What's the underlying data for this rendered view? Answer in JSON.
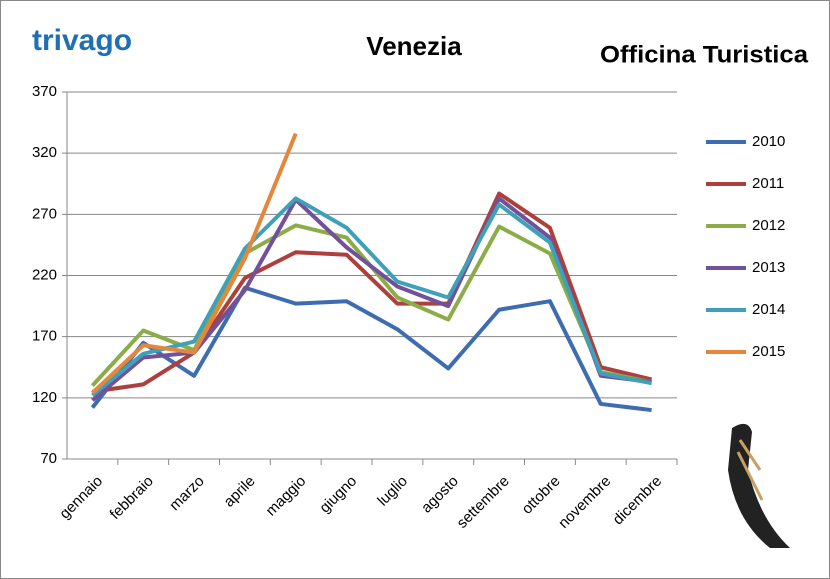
{
  "chart_data": {
    "type": "line",
    "title": "Venezia",
    "annotations": [
      "trivago",
      "Officina Turistica"
    ],
    "categories": [
      "gennaio",
      "febbraio",
      "marzo",
      "aprile",
      "maggio",
      "giugno",
      "luglio",
      "agosto",
      "settembre",
      "ottobre",
      "novembre",
      "dicembre"
    ],
    "series": [
      {
        "name": "2010",
        "color": "#3e6cb0",
        "values": [
          112,
          165,
          138,
          210,
          197,
          199,
          176,
          144,
          192,
          199,
          115,
          110
        ]
      },
      {
        "name": "2011",
        "color": "#ad403c",
        "values": [
          125,
          131,
          157,
          218,
          239,
          237,
          197,
          197,
          287,
          259,
          145,
          135
        ]
      },
      {
        "name": "2012",
        "color": "#8bac47",
        "values": [
          130,
          175,
          159,
          238,
          261,
          251,
          202,
          184,
          260,
          238,
          141,
          133
        ]
      },
      {
        "name": "2013",
        "color": "#72509a",
        "values": [
          118,
          153,
          157,
          208,
          282,
          243,
          211,
          195,
          283,
          251,
          138,
          133
        ]
      },
      {
        "name": "2014",
        "color": "#3fa0ba",
        "values": [
          122,
          156,
          166,
          242,
          283,
          259,
          215,
          202,
          278,
          247,
          140,
          132
        ]
      },
      {
        "name": "2015",
        "color": "#e5863a",
        "values": [
          124,
          163,
          157,
          234,
          336,
          null,
          null,
          null,
          null,
          null,
          null,
          null
        ]
      }
    ],
    "ylim": [
      70,
      370
    ],
    "yticks": [
      70,
      120,
      170,
      220,
      270,
      320,
      370
    ],
    "grid": true,
    "legend": "right"
  }
}
